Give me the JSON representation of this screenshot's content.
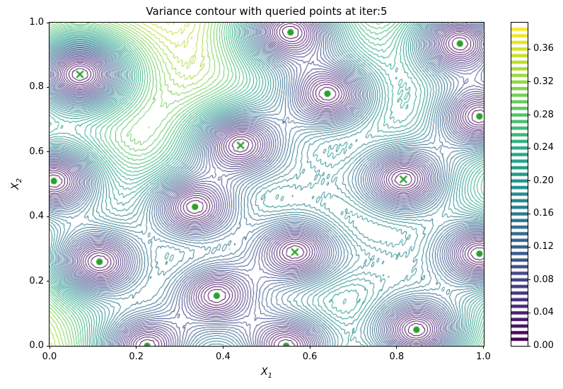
{
  "chart_data": {
    "type": "contour",
    "title": "Variance contour with queried points at iter:5",
    "xlabel_base": "X",
    "xlabel_sub": "1",
    "ylabel_base": "X",
    "ylabel_sub": "2",
    "xlim": [
      0.0,
      1.0
    ],
    "ylim": [
      0.0,
      1.0
    ],
    "x_tick_values": [
      0.0,
      0.2,
      0.4,
      0.6,
      0.8,
      1.0
    ],
    "x_tick_labels": [
      "0.0",
      "0.2",
      "0.4",
      "0.6",
      "0.8",
      "1.0"
    ],
    "y_tick_values": [
      0.0,
      0.2,
      0.4,
      0.6,
      0.8,
      1.0
    ],
    "y_tick_labels": [
      "0.0",
      "0.2",
      "0.4",
      "0.6",
      "0.8",
      "1.0"
    ],
    "colormap": "viridis",
    "colormap_low_color": "#440154",
    "colormap_high_color": "#fde725",
    "levels": {
      "min": 0.008,
      "step": 0.008,
      "count": 48
    },
    "colorbar": {
      "vmin": 0.0,
      "vmax": 0.392,
      "tick_values": [
        0.0,
        0.04,
        0.08,
        0.12,
        0.16,
        0.2,
        0.24,
        0.28,
        0.32,
        0.36
      ],
      "tick_labels": [
        "0.00",
        "0.04",
        "0.08",
        "0.12",
        "0.16",
        "0.20",
        "0.24",
        "0.28",
        "0.32",
        "0.36"
      ]
    },
    "marker_color": "#2ca02c",
    "sampled_points": [
      [
        0.555,
        0.97
      ],
      [
        0.945,
        0.935
      ],
      [
        0.64,
        0.78
      ],
      [
        0.99,
        0.71
      ],
      [
        0.01,
        0.51
      ],
      [
        0.335,
        0.43
      ],
      [
        0.115,
        0.26
      ],
      [
        0.385,
        0.155
      ],
      [
        0.225,
        0.0
      ],
      [
        0.545,
        0.0
      ],
      [
        0.845,
        0.05
      ],
      [
        0.99,
        0.285
      ]
    ],
    "queried_points": [
      [
        0.07,
        0.84
      ],
      [
        0.44,
        0.62
      ],
      [
        0.815,
        0.515
      ],
      [
        0.565,
        0.29
      ]
    ],
    "secondary_minima": [
      [
        0.6,
        0.516
      ],
      [
        0.766,
        0.26
      ]
    ],
    "gp_estimate": {
      "kernel": "matern52",
      "lengthscale": 0.16,
      "sigma2": 0.398,
      "secondary_noise": 1.3
    }
  }
}
